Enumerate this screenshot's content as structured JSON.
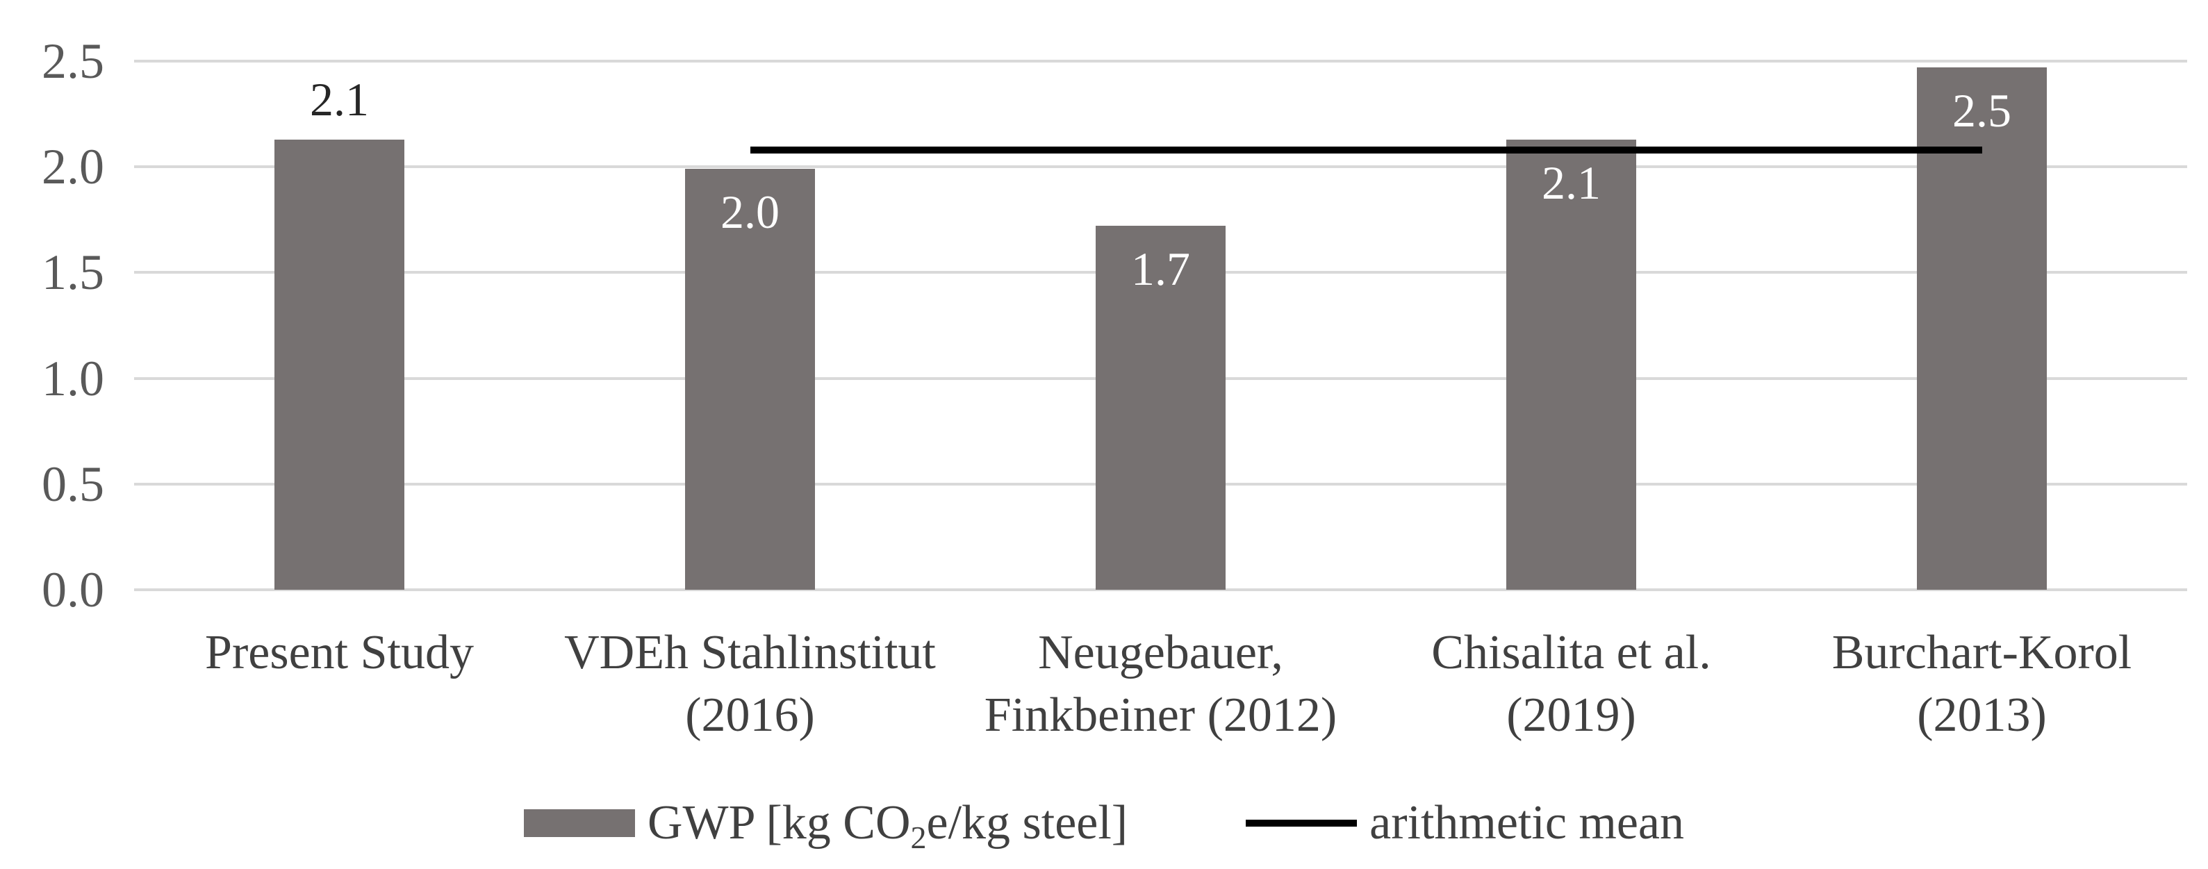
{
  "chart_data": {
    "type": "bar",
    "title": "",
    "xlabel": "",
    "ylabel": "",
    "categories": [
      [
        "Present Study"
      ],
      [
        "VDEh Stahlinstitut",
        "(2016)"
      ],
      [
        "Neugebauer,",
        "Finkbeiner (2012)"
      ],
      [
        "Chisalita et al.",
        "(2019)"
      ],
      [
        "Burchart-Korol",
        "(2013)"
      ]
    ],
    "values": [
      2.1,
      2.0,
      1.7,
      2.1,
      2.5
    ],
    "bar_value_labels": [
      "2.1",
      "2.0",
      "1.7",
      "2.1",
      "2.5"
    ],
    "values_precise": [
      2.13,
      1.99,
      1.72,
      2.13,
      2.47
    ],
    "value_label_position": [
      "above",
      "inside",
      "inside",
      "inside",
      "inside"
    ],
    "ylim": [
      0,
      2.5
    ],
    "yticks": [
      "0.0",
      "0.5",
      "1.0",
      "1.5",
      "2.0",
      "2.5"
    ],
    "grid": true,
    "legend_position": "bottom",
    "mean_line": {
      "value": 2.08,
      "from_category_index": 1,
      "to_category_index": 4,
      "label": "arithmetic mean"
    },
    "series_legend": [
      {
        "swatch": "bar",
        "label": "GWP [kg CO₂e/kg steel]"
      },
      {
        "swatch": "line",
        "label": "arithmetic mean"
      }
    ],
    "colors": {
      "bar": "#767171",
      "mean_line": "#000000",
      "gridline": "#d9d9d9",
      "tick_label": "#595959",
      "category_label": "#404040",
      "value_label_outside": "#262626",
      "value_label_inside": "#ffffff",
      "background": "#ffffff"
    }
  },
  "legend": {
    "gwp_label_parts": {
      "pre": "GWP [kg CO",
      "sub": "2",
      "post": "e/kg steel]"
    },
    "mean_label": "arithmetic mean"
  }
}
